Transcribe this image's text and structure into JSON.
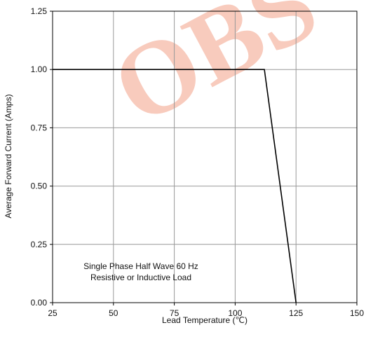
{
  "chart_data": {
    "type": "line",
    "xlabel": "Lead Temperature (℃)",
    "ylabel": "Average Forward Current (Amps)",
    "xlim": [
      25,
      150
    ],
    "ylim": [
      0,
      1.25
    ],
    "x_ticks": [
      25,
      50,
      75,
      100,
      125,
      150
    ],
    "y_ticks": [
      "0.00",
      "0.25",
      "0.50",
      "0.75",
      "1.00",
      "1.25"
    ],
    "grid": true,
    "series": [
      {
        "x": [
          25,
          112,
          125
        ],
        "y": [
          1.0,
          1.0,
          0.0
        ]
      }
    ],
    "annotation": [
      "Single Phase Half Wave 60 Hz",
      "Resistive or Inductive Load"
    ]
  },
  "watermark": "OBS",
  "colors": {
    "line": "#000000",
    "grid": "#999999",
    "watermark": "#f7c2b2"
  }
}
